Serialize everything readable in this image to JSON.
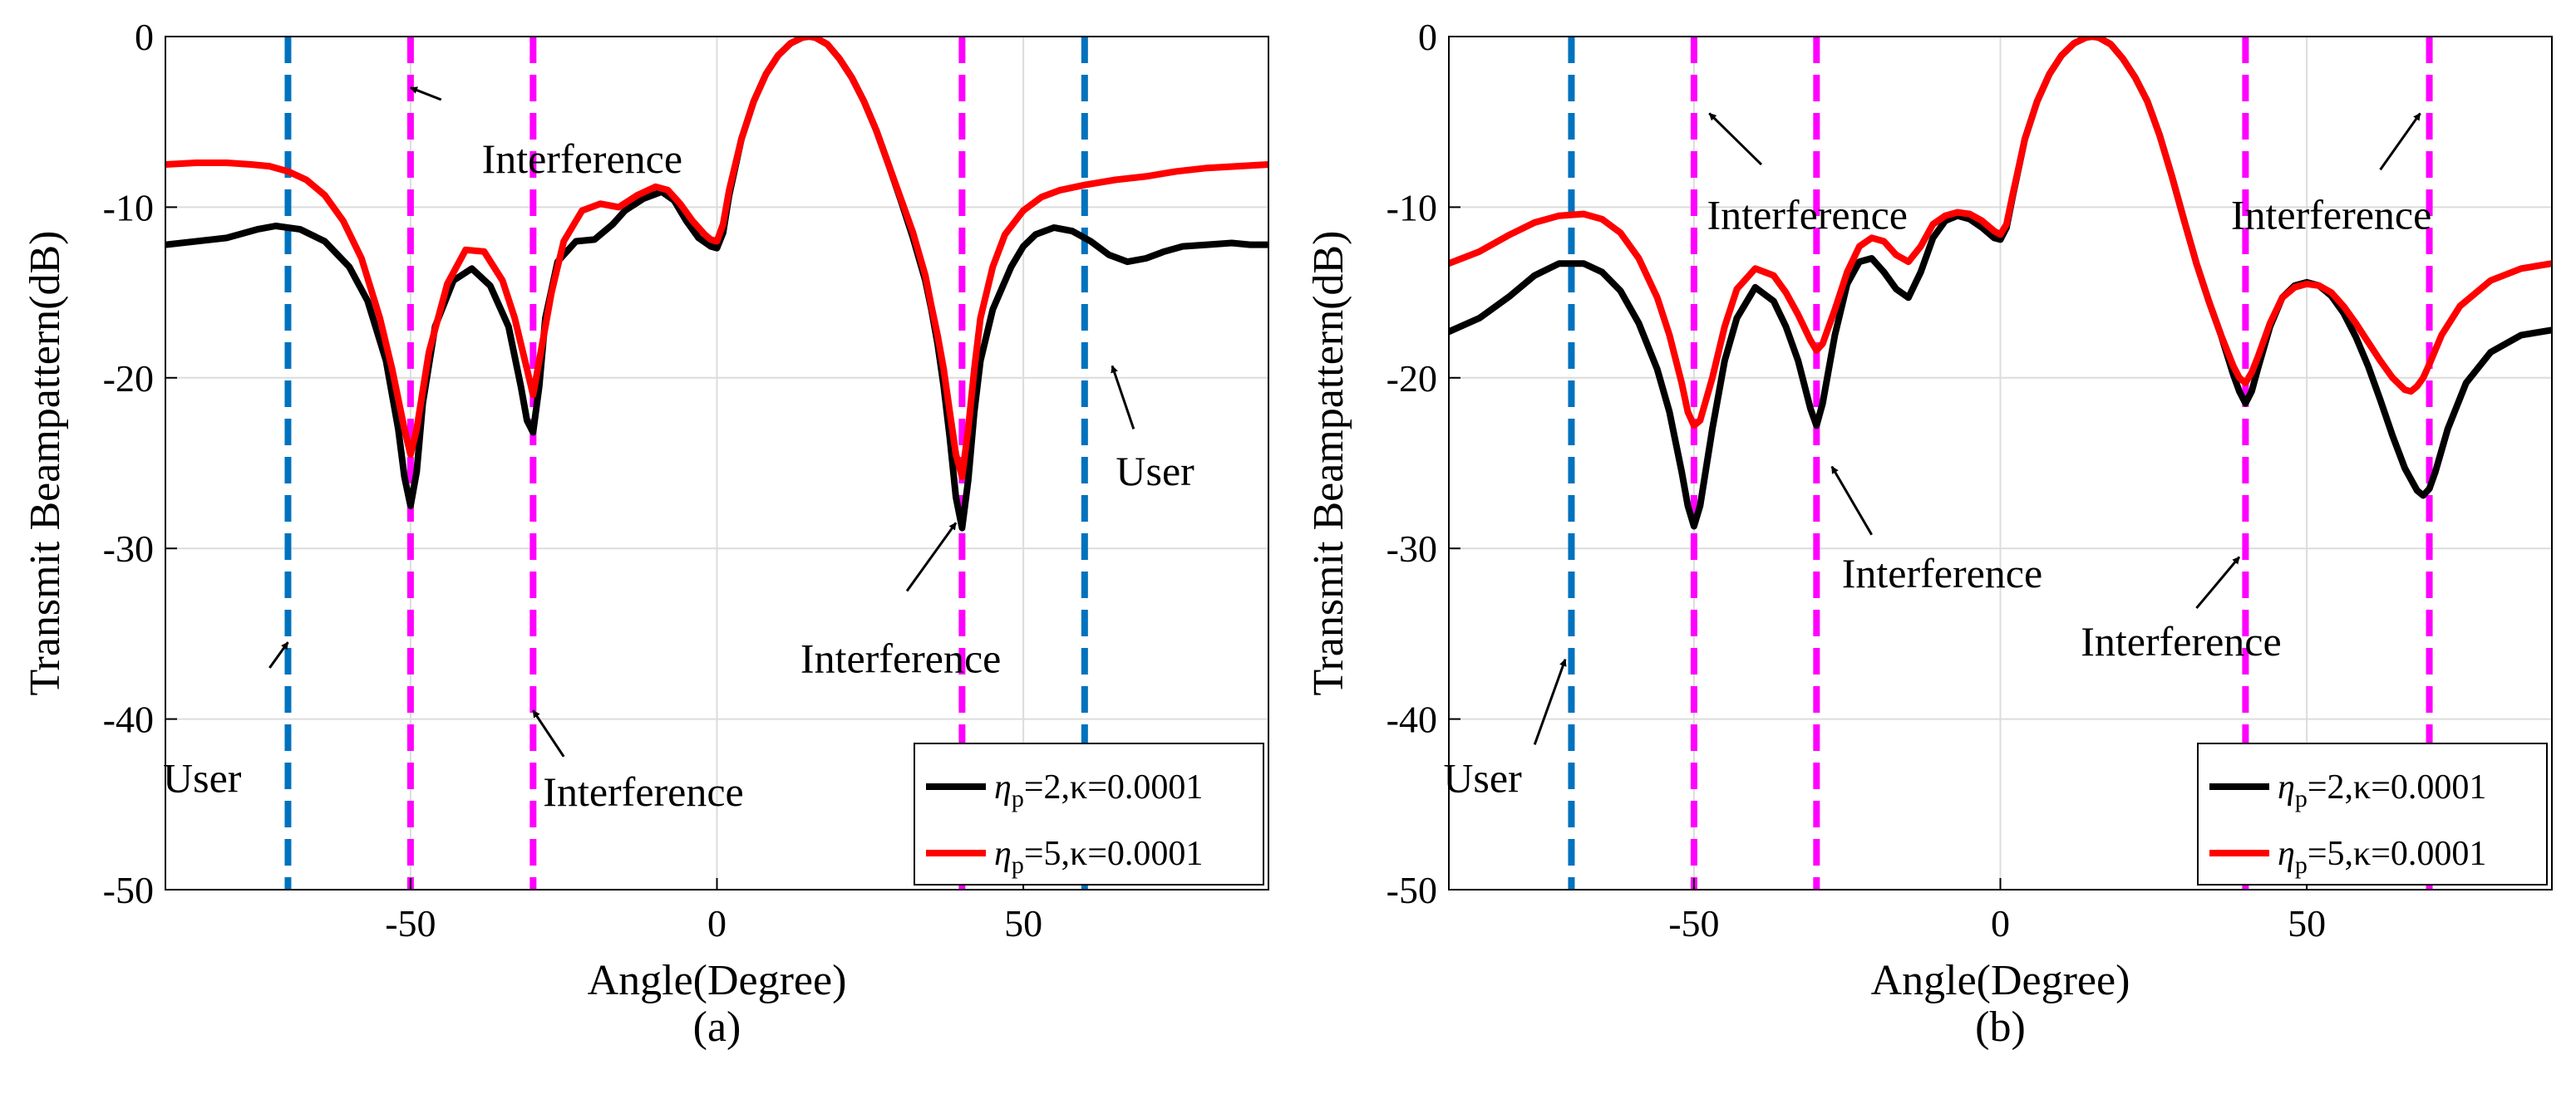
{
  "chart_data": [
    {
      "panel": "a",
      "type": "line",
      "sublabel": "(a)",
      "xlabel": "Angle(Degree)",
      "ylabel": "Transmit Beampattern(dB)",
      "xlim": [
        -90,
        90
      ],
      "ylim": [
        -50,
        0
      ],
      "xticks": [
        -50,
        0,
        50
      ],
      "xtick_labels": [
        "-50",
        "0",
        "50"
      ],
      "yticks": [
        0,
        -10,
        -20,
        -30,
        -40,
        -50
      ],
      "ytick_labels": [
        "0",
        "-10",
        "-20",
        "-30",
        "-40",
        "-50"
      ],
      "grid": true,
      "legend_position": "lower-right",
      "legend": [
        {
          "eta": "η",
          "sub": "p",
          "rest": "=2,κ=0.0001"
        },
        {
          "eta": "η",
          "sub": "p",
          "rest": "=5,κ=0.0001"
        }
      ],
      "vlines": [
        {
          "x": -70,
          "color": "#0072BD"
        },
        {
          "x": 60,
          "color": "#0072BD"
        },
        {
          "x": -50,
          "color": "#FF00FF"
        },
        {
          "x": -30,
          "color": "#FF00FF"
        },
        {
          "x": 40,
          "color": "#FF00FF"
        }
      ],
      "annotations": [
        {
          "text": "Interference",
          "x": -22,
          "y": -7.2,
          "ax": -45,
          "ay": -3.7,
          "tx": -50,
          "ty": -3
        },
        {
          "text": "User",
          "x": -84,
          "y": -43.5,
          "ax": -73,
          "ay": -37,
          "tx": -70,
          "ty": -35.5
        },
        {
          "text": "Interference",
          "x": -12,
          "y": -44.3,
          "ax": -25,
          "ay": -42.2,
          "tx": -30,
          "ty": -39.5
        },
        {
          "text": "Interference",
          "x": 30,
          "y": -36.5,
          "ax": 31,
          "ay": -32.5,
          "tx": 39,
          "ty": -28.5
        },
        {
          "text": "User",
          "x": 71.5,
          "y": -25.5,
          "ax": 68,
          "ay": -23,
          "tx": 64.5,
          "ty": -19.3
        }
      ],
      "series": [
        {
          "name": "",
          "color": "#000000",
          "x": [
            -90,
            -80,
            -75,
            -72,
            -68,
            -64,
            -60,
            -57,
            -54,
            -52,
            -51,
            -50,
            -49,
            -48,
            -46,
            -43,
            -40,
            -37,
            -34,
            -32,
            -31,
            -30,
            -29,
            -28,
            -26,
            -23,
            -20,
            -17,
            -15,
            -12,
            -9,
            -7,
            -5,
            -3,
            -1,
            0,
            1,
            2,
            4,
            6,
            8,
            10,
            12,
            14,
            15,
            16,
            18,
            20,
            22,
            24,
            26,
            28,
            30,
            32,
            34,
            35,
            36,
            37,
            38,
            39,
            40,
            41,
            42,
            43,
            45,
            48,
            50,
            52,
            55,
            58,
            61,
            64,
            67,
            70,
            73,
            76,
            80,
            84,
            87,
            90
          ],
          "values": [
            -12.2,
            -11.8,
            -11.3,
            -11.1,
            -11.3,
            -12.0,
            -13.5,
            -15.5,
            -19.0,
            -23.0,
            -25.8,
            -27.5,
            -25.5,
            -21.5,
            -17.0,
            -14.3,
            -13.6,
            -14.6,
            -17.0,
            -20.5,
            -22.5,
            -23.2,
            -20.5,
            -16.5,
            -13.2,
            -12.0,
            -11.9,
            -11.0,
            -10.2,
            -9.5,
            -9.1,
            -9.6,
            -10.8,
            -11.8,
            -12.3,
            -12.4,
            -11.5,
            -9.3,
            -6.0,
            -3.8,
            -2.2,
            -1.1,
            -0.4,
            -0.05,
            0,
            -0.05,
            -0.45,
            -1.3,
            -2.4,
            -3.8,
            -5.5,
            -7.5,
            -9.6,
            -11.8,
            -14.3,
            -16.0,
            -18.0,
            -20.5,
            -23.5,
            -27.0,
            -28.8,
            -26.0,
            -22.0,
            -19.0,
            -16.0,
            -13.5,
            -12.3,
            -11.6,
            -11.2,
            -11.4,
            -12.0,
            -12.8,
            -13.2,
            -13.0,
            -12.6,
            -12.3,
            -12.2,
            -12.1,
            -12.2,
            -12.2
          ]
        },
        {
          "name": "",
          "color": "#FF0000",
          "x": [
            -90,
            -85,
            -80,
            -76,
            -73,
            -70,
            -67,
            -64,
            -61,
            -58,
            -55,
            -53,
            -51,
            -50,
            -49,
            -47,
            -44,
            -41,
            -38,
            -35,
            -33,
            -31,
            -30,
            -29,
            -27,
            -25,
            -22,
            -19,
            -16,
            -13,
            -10,
            -8,
            -6,
            -4,
            -2,
            -1,
            0,
            1,
            2,
            4,
            6,
            8,
            10,
            12,
            14,
            15,
            16,
            18,
            20,
            22,
            24,
            26,
            28,
            30,
            32,
            34,
            35,
            36,
            37,
            38,
            39,
            40,
            41,
            42,
            43,
            45,
            47,
            50,
            53,
            56,
            60,
            65,
            70,
            75,
            80,
            85,
            90
          ],
          "values": [
            -7.5,
            -7.4,
            -7.4,
            -7.5,
            -7.6,
            -7.9,
            -8.4,
            -9.3,
            -10.8,
            -13.0,
            -16.5,
            -19.5,
            -23.0,
            -24.5,
            -23.0,
            -18.5,
            -14.5,
            -12.5,
            -12.6,
            -14.3,
            -16.5,
            -19.5,
            -21.0,
            -19.0,
            -15.0,
            -12.0,
            -10.2,
            -9.8,
            -10.0,
            -9.3,
            -8.8,
            -9.0,
            -9.8,
            -10.8,
            -11.6,
            -11.9,
            -12.0,
            -11.0,
            -9.0,
            -6.0,
            -3.8,
            -2.2,
            -1.1,
            -0.4,
            -0.05,
            0,
            -0.05,
            -0.45,
            -1.3,
            -2.4,
            -3.8,
            -5.5,
            -7.5,
            -9.5,
            -11.5,
            -14.0,
            -15.8,
            -17.5,
            -19.5,
            -22.0,
            -24.5,
            -25.8,
            -23.0,
            -19.5,
            -16.5,
            -13.5,
            -11.6,
            -10.2,
            -9.4,
            -9.0,
            -8.7,
            -8.4,
            -8.2,
            -7.9,
            -7.7,
            -7.6,
            -7.5
          ]
        }
      ]
    },
    {
      "panel": "b",
      "type": "line",
      "sublabel": "(b)",
      "xlabel": "Angle(Degree)",
      "ylabel": "Transmit Beampattern(dB)",
      "xlim": [
        -90,
        90
      ],
      "ylim": [
        -50,
        0
      ],
      "xticks": [
        -50,
        0,
        50
      ],
      "xtick_labels": [
        "-50",
        "0",
        "50"
      ],
      "yticks": [
        0,
        -10,
        -20,
        -30,
        -40,
        -50
      ],
      "ytick_labels": [
        "0",
        "-10",
        "-20",
        "-30",
        "-40",
        "-50"
      ],
      "grid": true,
      "legend_position": "lower-right",
      "legend": [
        {
          "eta": "η",
          "sub": "p",
          "rest": "=2,κ=0.0001"
        },
        {
          "eta": "η",
          "sub": "p",
          "rest": "=5,κ=0.0001"
        }
      ],
      "vlines": [
        {
          "x": -70,
          "color": "#0072BD"
        },
        {
          "x": -50,
          "color": "#FF00FF"
        },
        {
          "x": -30,
          "color": "#FF00FF"
        },
        {
          "x": 40,
          "color": "#FF00FF"
        },
        {
          "x": 70,
          "color": "#FF00FF"
        }
      ],
      "annotations": [
        {
          "text": "Interference",
          "x": -31.5,
          "y": -10.5,
          "ax": -39,
          "ay": -7.5,
          "tx": -47.5,
          "ty": -4.5
        },
        {
          "text": "User",
          "x": -84.5,
          "y": -43.5,
          "ax": -76,
          "ay": -41.5,
          "tx": -71,
          "ty": -36.5
        },
        {
          "text": "Interference",
          "x": -9.5,
          "y": -31.5,
          "ax": -21,
          "ay": -29.2,
          "tx": -27.5,
          "ty": -25.2
        },
        {
          "text": "Interference",
          "x": 29.5,
          "y": -35.5,
          "ax": 32,
          "ay": -33.5,
          "tx": 39,
          "ty": -30.5
        },
        {
          "text": "Interference",
          "x": 54,
          "y": -10.5,
          "ax": 62,
          "ay": -7.8,
          "tx": 68.5,
          "ty": -4.5
        }
      ],
      "series": [
        {
          "name": "",
          "color": "#000000",
          "x": [
            -90,
            -85,
            -80,
            -76,
            -72,
            -68,
            -65,
            -62,
            -59,
            -56,
            -54,
            -52,
            -51,
            -50,
            -49,
            -47,
            -45,
            -43,
            -40,
            -37,
            -35,
            -33,
            -31,
            -30,
            -29,
            -27,
            -25,
            -23,
            -21,
            -19,
            -17,
            -15,
            -13,
            -11,
            -9,
            -7,
            -5,
            -3,
            -1,
            0,
            1,
            2,
            4,
            6,
            8,
            10,
            12,
            14,
            15,
            16,
            18,
            20,
            22,
            24,
            26,
            28,
            30,
            32,
            34,
            36,
            38,
            39,
            40,
            41,
            42,
            44,
            46,
            48,
            50,
            52,
            54,
            56,
            58,
            60,
            62,
            64,
            66,
            68,
            69,
            70,
            71,
            73,
            76,
            80,
            85,
            90
          ],
          "values": [
            -17.3,
            -16.5,
            -15.2,
            -14.0,
            -13.3,
            -13.3,
            -13.8,
            -14.9,
            -16.8,
            -19.5,
            -22.0,
            -25.5,
            -27.5,
            -28.7,
            -27.5,
            -23.0,
            -19.0,
            -16.5,
            -14.7,
            -15.5,
            -17.0,
            -19.0,
            -21.8,
            -22.8,
            -21.5,
            -17.5,
            -14.5,
            -13.2,
            -13.0,
            -13.8,
            -14.8,
            -15.3,
            -13.8,
            -11.8,
            -10.8,
            -10.5,
            -10.7,
            -11.2,
            -11.8,
            -11.9,
            -11.2,
            -9.4,
            -6.0,
            -3.8,
            -2.2,
            -1.1,
            -0.4,
            -0.05,
            0,
            -0.05,
            -0.45,
            -1.3,
            -2.4,
            -3.8,
            -5.8,
            -8.2,
            -10.8,
            -13.3,
            -15.5,
            -17.5,
            -19.8,
            -20.8,
            -21.5,
            -20.8,
            -19.5,
            -17.0,
            -15.3,
            -14.6,
            -14.4,
            -14.6,
            -15.2,
            -16.2,
            -17.6,
            -19.3,
            -21.3,
            -23.4,
            -25.3,
            -26.6,
            -26.9,
            -26.5,
            -25.5,
            -23.0,
            -20.3,
            -18.5,
            -17.5,
            -17.2
          ]
        },
        {
          "name": "",
          "color": "#FF0000",
          "x": [
            -90,
            -85,
            -80,
            -76,
            -72,
            -68,
            -65,
            -62,
            -59,
            -56,
            -54,
            -52,
            -51,
            -50,
            -49,
            -47,
            -45,
            -43,
            -40,
            -37,
            -35,
            -33,
            -31,
            -30,
            -29,
            -27,
            -25,
            -23,
            -21,
            -19,
            -17,
            -15,
            -13,
            -11,
            -9,
            -7,
            -5,
            -3,
            -1,
            0,
            1,
            2,
            4,
            6,
            8,
            10,
            12,
            14,
            15,
            16,
            18,
            20,
            22,
            24,
            26,
            28,
            30,
            32,
            34,
            36,
            38,
            39,
            40,
            41,
            42,
            44,
            46,
            48,
            50,
            52,
            54,
            56,
            58,
            60,
            62,
            64,
            66,
            67,
            68,
            69,
            70,
            72,
            75,
            80,
            85,
            90
          ],
          "values": [
            -13.3,
            -12.6,
            -11.6,
            -10.9,
            -10.5,
            -10.4,
            -10.7,
            -11.5,
            -13.0,
            -15.3,
            -17.5,
            -20.3,
            -22.0,
            -22.8,
            -22.5,
            -20.0,
            -17.0,
            -14.8,
            -13.6,
            -14.0,
            -15.0,
            -16.3,
            -17.8,
            -18.4,
            -18.0,
            -16.0,
            -13.8,
            -12.3,
            -11.8,
            -12.0,
            -12.8,
            -13.2,
            -12.3,
            -11.0,
            -10.5,
            -10.3,
            -10.4,
            -10.8,
            -11.4,
            -11.6,
            -11.0,
            -9.3,
            -6.0,
            -3.8,
            -2.2,
            -1.1,
            -0.4,
            -0.05,
            0,
            -0.05,
            -0.45,
            -1.3,
            -2.4,
            -3.8,
            -5.8,
            -8.2,
            -10.8,
            -13.3,
            -15.5,
            -17.5,
            -19.3,
            -20.0,
            -20.3,
            -19.7,
            -18.8,
            -16.8,
            -15.3,
            -14.7,
            -14.5,
            -14.6,
            -15.0,
            -15.8,
            -16.8,
            -17.9,
            -19.0,
            -20.0,
            -20.7,
            -20.8,
            -20.5,
            -20.0,
            -19.2,
            -17.5,
            -15.8,
            -14.3,
            -13.6,
            -13.3
          ]
        }
      ]
    }
  ]
}
